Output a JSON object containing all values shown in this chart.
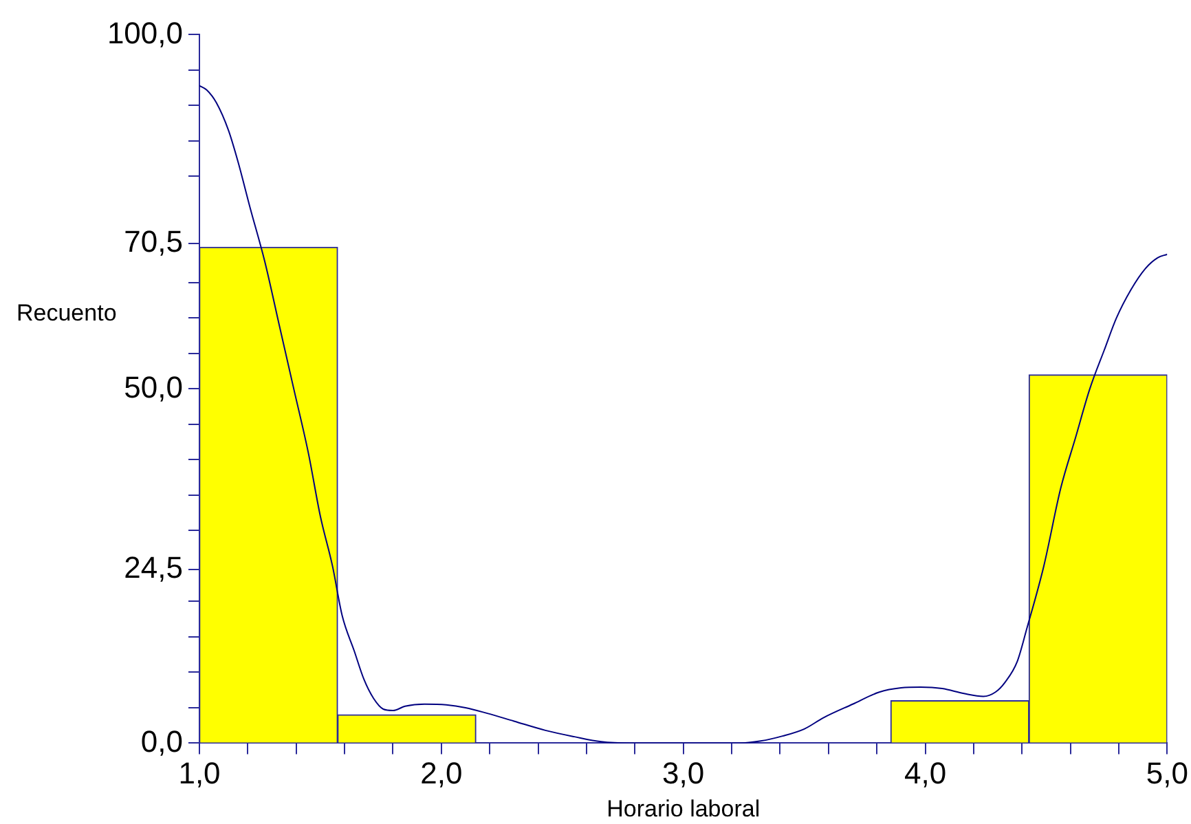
{
  "chart_data": {
    "type": "histogram",
    "xlabel": "Horario laboral",
    "ylabel": "Recuento",
    "bins": [
      1,
      1.571,
      2.143,
      2.714,
      3.286,
      3.857,
      4.429,
      5
    ],
    "values": [
      70,
      4,
      0,
      0,
      0,
      6,
      52
    ],
    "color": "#ffff00",
    "series": [
      {
        "type": "line",
        "color": "#000080",
        "x": [
          1.0,
          1.03,
          1.07,
          1.12,
          1.16,
          1.21,
          1.27,
          1.33,
          1.39,
          1.45,
          1.5,
          1.55,
          1.59,
          1.64,
          1.68,
          1.72,
          1.76,
          1.8,
          1.85,
          1.93,
          2.02,
          2.1,
          2.19,
          2.3,
          2.43,
          2.55,
          2.66,
          2.78,
          2.89,
          3.0,
          3.1,
          3.23,
          3.32,
          3.41,
          3.5,
          3.58,
          3.7,
          3.81,
          3.9,
          3.98,
          4.07,
          4.16,
          4.24,
          4.29,
          4.33,
          4.38,
          4.42,
          4.49,
          4.56,
          4.62,
          4.68,
          4.74,
          4.79,
          4.85,
          4.91,
          4.96,
          5.0
        ],
        "values": [
          92.8,
          92.2,
          90.4,
          86.5,
          82,
          75.5,
          68,
          59,
          50,
          41,
          32,
          25,
          18,
          13,
          9,
          6.3,
          4.8,
          4.6,
          5.2,
          5.5,
          5.4,
          5,
          4.2,
          3.1,
          1.8,
          0.9,
          0.2,
          0,
          0,
          0,
          0,
          0,
          0.3,
          1,
          2,
          3.6,
          5.5,
          7.2,
          7.8,
          7.9,
          7.7,
          7,
          6.6,
          7.2,
          8.6,
          11.5,
          16.2,
          25,
          36,
          43,
          50,
          55.5,
          60,
          64,
          67,
          68.5,
          69
        ]
      }
    ],
    "marker": "none",
    "xlim": [
      1,
      5
    ],
    "xticks": [
      {
        "value": 1,
        "label": "1,0"
      },
      {
        "value": 1.2,
        "label": null
      },
      {
        "value": 1.4,
        "label": null
      },
      {
        "value": 1.6,
        "label": null
      },
      {
        "value": 1.8,
        "label": null
      },
      {
        "value": 2,
        "label": "2,0"
      },
      {
        "value": 2.2,
        "label": null
      },
      {
        "value": 2.4,
        "label": null
      },
      {
        "value": 2.6,
        "label": null
      },
      {
        "value": 2.8,
        "label": null
      },
      {
        "value": 3,
        "label": "3,0"
      },
      {
        "value": 3.2,
        "label": null
      },
      {
        "value": 3.4,
        "label": null
      },
      {
        "value": 3.6,
        "label": null
      },
      {
        "value": 3.8,
        "label": null
      },
      {
        "value": 4,
        "label": "4,0"
      },
      {
        "value": 4.2,
        "label": null
      },
      {
        "value": 4.4,
        "label": null
      },
      {
        "value": 4.6,
        "label": null
      },
      {
        "value": 4.8,
        "label": null
      },
      {
        "value": 5,
        "label": "5,0"
      }
    ],
    "ylim": [
      0,
      100
    ],
    "yticks": [
      {
        "value": 0,
        "label": "0,0"
      },
      {
        "value": 5,
        "label": null
      },
      {
        "value": 10,
        "label": null
      },
      {
        "value": 15,
        "label": null
      },
      {
        "value": 20,
        "label": null
      },
      {
        "value": 24.5,
        "label": "24,5"
      },
      {
        "value": 30,
        "label": null
      },
      {
        "value": 35,
        "label": null
      },
      {
        "value": 40,
        "label": null
      },
      {
        "value": 45,
        "label": null
      },
      {
        "value": 50,
        "label": "50,0"
      },
      {
        "value": 55,
        "label": null
      },
      {
        "value": 60,
        "label": null
      },
      {
        "value": 65,
        "label": null
      },
      {
        "value": 70.5,
        "label": "70,5"
      },
      {
        "value": 80,
        "label": null
      },
      {
        "value": 85,
        "label": null
      },
      {
        "value": 90,
        "label": null
      },
      {
        "value": 95,
        "label": null
      },
      {
        "value": 100,
        "label": "100,0"
      }
    ]
  }
}
